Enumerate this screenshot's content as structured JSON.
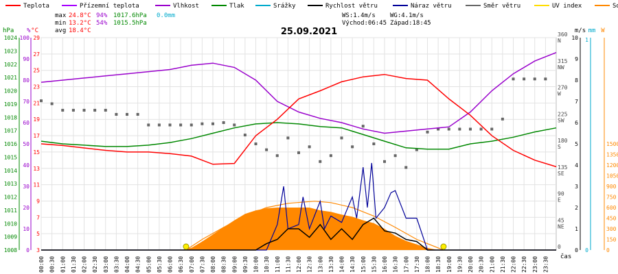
{
  "chart_data": {
    "type": "line",
    "title": "25.09.2021",
    "legend": {
      "placement": "top",
      "items": [
        {
          "key": "teplota",
          "label": "Teplota",
          "color": "#ff0000"
        },
        {
          "key": "prizemni",
          "label": "Přízemní teplota",
          "color": "#a600ff"
        },
        {
          "key": "vlhkost",
          "label": "Vlhkost",
          "color": "#9900cc"
        },
        {
          "key": "tlak",
          "label": "Tlak",
          "color": "#008800"
        },
        {
          "key": "srazky",
          "label": "Srážky",
          "color": "#00aacc"
        },
        {
          "key": "rychlost",
          "label": "Rychlost větru",
          "color": "#000000"
        },
        {
          "key": "naraz",
          "label": "Náraz větru",
          "color": "#000099"
        },
        {
          "key": "smer",
          "label": "Směr větru",
          "color": "#666666"
        },
        {
          "key": "uv",
          "label": "UV index",
          "color": "#ffdd00"
        },
        {
          "key": "solar",
          "label": "Solar",
          "color": "#ff8800"
        }
      ]
    },
    "stats": {
      "max": {
        "label": "max",
        "temp": "24.8°C",
        "hum": "94%",
        "press": "1017.6hPa",
        "rain": "0.0mm"
      },
      "min": {
        "label": "min",
        "temp": "13.2°C",
        "hum": "54%",
        "press": "1015.5hPa"
      },
      "avg": {
        "label": "avg",
        "temp": "18.4°C"
      }
    },
    "info": {
      "ws": "WS:1.4m/s",
      "wg": "WG:4.1m/s",
      "sunrise": "Východ:06:45",
      "sunset": "Západ:18:45"
    },
    "axes": {
      "hpa": {
        "label": "hPa",
        "ticks": [
          "1008",
          "1009",
          "1010",
          "1011",
          "1012",
          "1013",
          "1014",
          "1015",
          "1016",
          "1017",
          "1018",
          "1019",
          "1020",
          "1021",
          "1022",
          "1023",
          "1024"
        ],
        "color": "#008800"
      },
      "pct": {
        "label": "%",
        "ticks": [
          "0",
          "10",
          "20",
          "30",
          "40",
          "50",
          "60",
          "70",
          "80",
          "90",
          "100"
        ],
        "color": "#9900cc"
      },
      "degc": {
        "label": "°C",
        "ticks": [
          "3",
          "5",
          "7",
          "9",
          "11",
          "13",
          "15",
          "17",
          "19",
          "21",
          "23",
          "25",
          "27",
          "29"
        ],
        "color": "#ff0000"
      },
      "dir": {
        "ticks": [
          "0",
          "45",
          "90",
          "135",
          "180",
          "225",
          "270",
          "315",
          "360"
        ],
        "labels": [
          "",
          "NE",
          "E",
          "SE",
          "S",
          "SW",
          "W",
          "NW",
          "N"
        ],
        "color": "#444444"
      },
      "ms": {
        "label": "m/s",
        "ticks": [
          "0",
          "1",
          "2",
          "3",
          "4",
          "5",
          "6",
          "7",
          "8",
          "9",
          "10"
        ],
        "color": "#000000"
      },
      "mm": {
        "label": "mm",
        "ticks": [
          "0",
          "1"
        ],
        "color": "#00aacc"
      },
      "w": {
        "label": "W",
        "ticks": [
          "0",
          "150",
          "300",
          "450",
          "600",
          "750",
          "900",
          "1050",
          "1200",
          "1350",
          "1500"
        ],
        "color": "#ff8800"
      },
      "x_label": "čas"
    },
    "x_ticks": [
      "00:00",
      "00:30",
      "01:00",
      "01:30",
      "02:00",
      "02:30",
      "03:00",
      "03:30",
      "04:00",
      "04:30",
      "05:00",
      "05:30",
      "06:00",
      "06:30",
      "07:00",
      "07:30",
      "08:00",
      "08:30",
      "09:00",
      "09:30",
      "10:00",
      "10:30",
      "11:00",
      "11:30",
      "12:00",
      "12:30",
      "13:00",
      "13:30",
      "14:00",
      "14:30",
      "15:00",
      "15:30",
      "16:00",
      "16:30",
      "17:00",
      "17:30",
      "18:00",
      "18:30",
      "19:00",
      "19:30",
      "20:00",
      "20:30",
      "21:00",
      "21:30",
      "22:00",
      "22:30",
      "23:00",
      "23:30"
    ],
    "series": [
      {
        "key": "teplota",
        "unit": "°C",
        "x": [
          0,
          1,
          2,
          3,
          4,
          5,
          6,
          7,
          8,
          9,
          10,
          11,
          12,
          13,
          14,
          15,
          16,
          17,
          18,
          19,
          20,
          21,
          22,
          23,
          24
        ],
        "values": [
          16.0,
          15.8,
          15.5,
          15.2,
          15.0,
          15.0,
          14.8,
          14.5,
          13.5,
          13.6,
          17.0,
          19.0,
          21.5,
          22.5,
          23.6,
          24.2,
          24.5,
          24.0,
          23.8,
          21.5,
          19.5,
          17.0,
          15.2,
          14.0,
          13.2
        ]
      },
      {
        "key": "vlhkost",
        "unit": "%",
        "x": [
          0,
          1,
          2,
          3,
          4,
          5,
          6,
          7,
          8,
          9,
          10,
          11,
          12,
          13,
          14,
          15,
          16,
          17,
          18,
          19,
          20,
          21,
          22,
          23,
          24
        ],
        "values": [
          79,
          80,
          81,
          82,
          83,
          84,
          85,
          87,
          88,
          86,
          80,
          70,
          65,
          62,
          60,
          57,
          55,
          56,
          57,
          58,
          65,
          75,
          83,
          89,
          93
        ]
      },
      {
        "key": "tlak",
        "unit": "hPa",
        "x": [
          0,
          1,
          2,
          3,
          4,
          5,
          6,
          7,
          8,
          9,
          10,
          11,
          12,
          13,
          14,
          15,
          16,
          17,
          18,
          19,
          20,
          21,
          22,
          23,
          24
        ],
        "values": [
          1016.2,
          1016.0,
          1015.9,
          1015.8,
          1015.8,
          1015.9,
          1016.1,
          1016.4,
          1016.8,
          1017.2,
          1017.5,
          1017.6,
          1017.5,
          1017.3,
          1017.2,
          1016.7,
          1016.2,
          1015.7,
          1015.6,
          1015.6,
          1016.0,
          1016.2,
          1016.5,
          1016.9,
          1017.2
        ]
      },
      {
        "key": "rychlost",
        "unit": "m/s",
        "x": [
          0,
          6,
          9.5,
          10,
          10.5,
          11,
          11.5,
          12,
          12.5,
          13,
          13.5,
          14,
          14.5,
          15,
          15.5,
          16,
          16.5,
          17,
          17.5,
          18,
          24
        ],
        "values": [
          0,
          0,
          0,
          0,
          0.3,
          0.5,
          1.0,
          1.0,
          0.6,
          1.2,
          0.5,
          1.0,
          0.5,
          1.2,
          1.5,
          0.9,
          0.8,
          0.5,
          0.4,
          0,
          0
        ]
      },
      {
        "key": "naraz",
        "unit": "m/s",
        "x": [
          0,
          10.5,
          11,
          11.3,
          11.5,
          12,
          12.2,
          12.5,
          13,
          13.2,
          13.5,
          14,
          14.5,
          14.7,
          15,
          15.2,
          15.4,
          15.6,
          16,
          16.3,
          16.5,
          17,
          17.5,
          18,
          24
        ],
        "values": [
          0,
          0,
          1.2,
          3.0,
          1.0,
          1.2,
          2.5,
          1.0,
          2.3,
          1.0,
          1.6,
          1.3,
          2.5,
          1.5,
          3.9,
          2.0,
          4.1,
          1.5,
          2.0,
          2.7,
          2.8,
          1.5,
          1.5,
          0,
          0
        ]
      },
      {
        "key": "solar",
        "unit": "W",
        "x": [
          6.5,
          7,
          7.5,
          8,
          8.5,
          9,
          9.5,
          10,
          10.5,
          11,
          11.5,
          12,
          12.5,
          13,
          13.5,
          14,
          14.5,
          15,
          15.5,
          16,
          16.5,
          17,
          17.5,
          18,
          18.5
        ],
        "values": [
          0,
          30,
          120,
          220,
          320,
          420,
          510,
          560,
          590,
          600,
          600,
          600,
          600,
          560,
          540,
          500,
          470,
          420,
          380,
          300,
          200,
          130,
          80,
          30,
          0
        ]
      },
      {
        "key": "solar_theoretical",
        "unit": "W",
        "x": [
          6.75,
          7.5,
          8.5,
          9.5,
          10.5,
          11.5,
          12.75,
          13.5,
          14.5,
          15.5,
          16.5,
          17.5,
          18.75
        ],
        "values": [
          0,
          150,
          320,
          480,
          600,
          660,
          690,
          670,
          600,
          480,
          320,
          150,
          0
        ]
      },
      {
        "key": "smer",
        "unit": "°",
        "type": "scatter",
        "x": [
          0,
          0.5,
          1,
          1.5,
          2,
          2.5,
          3,
          3.5,
          4,
          4.5,
          5,
          5.5,
          6,
          6.5,
          7,
          7.5,
          8,
          8.5,
          9,
          9.5,
          10,
          10.5,
          11,
          11.5,
          12,
          12.5,
          13,
          13.5,
          14,
          14.5,
          15,
          15.5,
          16,
          16.5,
          17,
          17.5,
          18,
          18.5,
          19,
          19.5,
          20,
          20.5,
          21,
          21.5,
          22,
          22.5,
          23,
          23.5
        ],
        "values": [
          253,
          248,
          237,
          237,
          237,
          237,
          237,
          230,
          230,
          230,
          212,
          212,
          212,
          212,
          212,
          214,
          214,
          216,
          212,
          195,
          180,
          170,
          160,
          190,
          165,
          175,
          150,
          160,
          190,
          175,
          210,
          180,
          150,
          160,
          140,
          170,
          200,
          205,
          205,
          205,
          205,
          205,
          205,
          222,
          290,
          290,
          290,
          290
        ]
      }
    ],
    "uv_markers": [
      {
        "x": 6.75,
        "label": "Východ"
      },
      {
        "x": 18.75,
        "label": "Západ"
      }
    ]
  }
}
